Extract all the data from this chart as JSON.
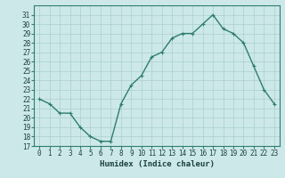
{
  "x": [
    0,
    1,
    2,
    3,
    4,
    5,
    6,
    7,
    8,
    9,
    10,
    11,
    12,
    13,
    14,
    15,
    16,
    17,
    18,
    19,
    20,
    21,
    22,
    23
  ],
  "y": [
    22,
    21.5,
    20.5,
    20.5,
    19,
    18,
    17.5,
    17.5,
    21.5,
    23.5,
    24.5,
    26.5,
    27,
    28.5,
    29,
    29,
    30,
    31,
    29.5,
    29,
    28,
    25.5,
    23,
    21.5
  ],
  "line_color": "#2e7d6e",
  "marker": "+",
  "marker_size": 3,
  "marker_lw": 0.8,
  "line_width": 1.0,
  "bg_color": "#cce8e8",
  "grid_color": "#aacfcf",
  "xlabel": "Humidex (Indice chaleur)",
  "xlim": [
    -0.5,
    23.5
  ],
  "ylim": [
    17,
    32
  ],
  "yticks": [
    17,
    18,
    19,
    20,
    21,
    22,
    23,
    24,
    25,
    26,
    27,
    28,
    29,
    30,
    31
  ],
  "xticks": [
    0,
    1,
    2,
    3,
    4,
    5,
    6,
    7,
    8,
    9,
    10,
    11,
    12,
    13,
    14,
    15,
    16,
    17,
    18,
    19,
    20,
    21,
    22,
    23
  ],
  "tick_fontsize": 5.5,
  "label_fontsize": 6.5,
  "label_color": "#1a4040",
  "spine_color": "#2e7d6e"
}
